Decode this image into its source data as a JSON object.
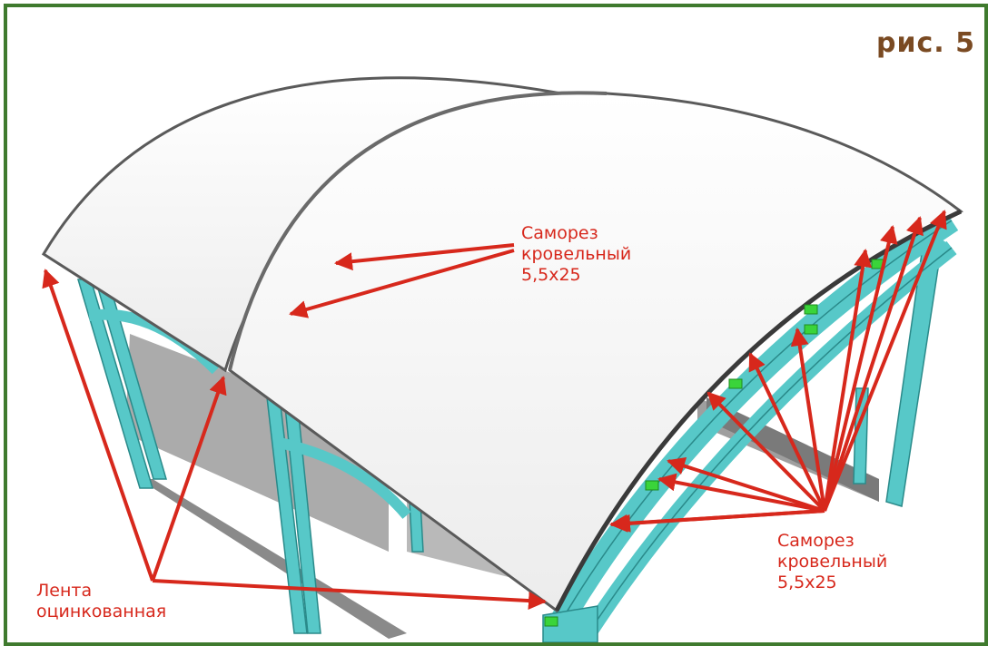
{
  "figure_label": "рис. 5",
  "callouts": {
    "top": [
      "Саморез",
      "кровельный",
      "5,5х25"
    ],
    "right": [
      "Саморез",
      "кровельный",
      "5,5х25"
    ],
    "left": [
      "Лента",
      "оцинкованная"
    ]
  },
  "colors": {
    "frame_border": "#3f7a2e",
    "figure_label": "#7a4a22",
    "callout": "#d7281c",
    "steel_frame": "#57c8c8",
    "roof_sheet": "#f4f4f4",
    "fastener": "#3ad43a"
  }
}
